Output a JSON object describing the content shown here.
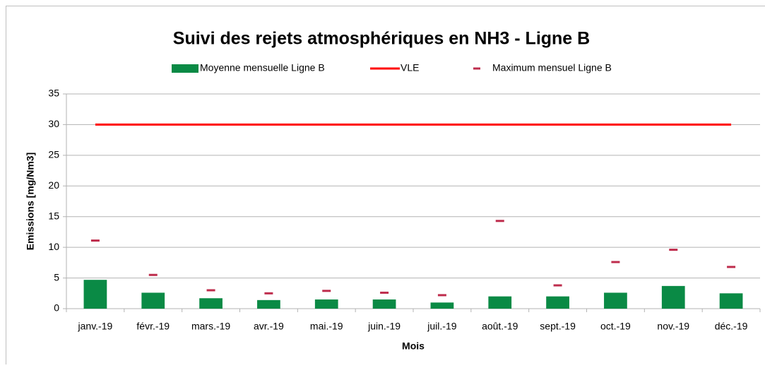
{
  "chart_data": {
    "type": "bar",
    "title": "Suivi des rejets atmosphériques en NH3 - Ligne B",
    "x_label": "Mois",
    "y_label": "Emissions [mg/Nm3]",
    "categories": [
      "janv.-19",
      "févr.-19",
      "mars.-19",
      "avr.-19",
      "mai.-19",
      "juin.-19",
      "juil.-19",
      "août.-19",
      "sept.-19",
      "oct.-19",
      "nov.-19",
      "déc.-19"
    ],
    "series": [
      {
        "name": "Moyenne mensuelle Ligne B",
        "type": "bar",
        "color": "#0a8a45",
        "values": [
          4.7,
          2.6,
          1.7,
          1.4,
          1.5,
          1.5,
          1.0,
          2.0,
          2.0,
          2.6,
          3.7,
          2.5
        ]
      },
      {
        "name": "VLE",
        "type": "line",
        "color": "#ff0000",
        "values": [
          30,
          30,
          30,
          30,
          30,
          30,
          30,
          30,
          30,
          30,
          30,
          30
        ]
      },
      {
        "name": "Maximum mensuel Ligne B",
        "type": "dash",
        "color": "#be2c4c",
        "values": [
          11.1,
          5.5,
          3.0,
          2.5,
          2.9,
          2.6,
          2.2,
          14.3,
          3.8,
          7.6,
          9.6,
          6.8
        ]
      }
    ],
    "ylim": [
      0,
      35
    ],
    "yticks": [
      0,
      5,
      10,
      15,
      20,
      25,
      30,
      35
    ],
    "grid": true,
    "legend": "top"
  }
}
